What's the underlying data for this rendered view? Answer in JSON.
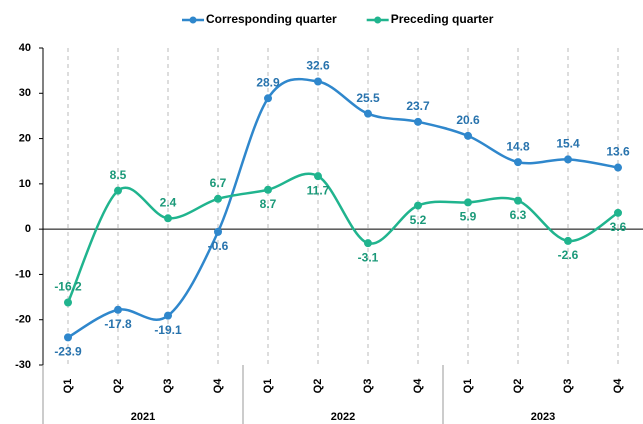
{
  "chart_data": {
    "type": "line",
    "categories": [
      "Q1",
      "Q2",
      "Q3",
      "Q4",
      "Q1",
      "Q2",
      "Q3",
      "Q4",
      "Q1",
      "Q2",
      "Q3",
      "Q4"
    ],
    "groups": [
      "2021",
      "2022",
      "2023"
    ],
    "series": [
      {
        "name": "Corresponding quarter",
        "color": "#2f87cc",
        "values": [
          -23.9,
          -17.8,
          -19.1,
          -0.6,
          28.9,
          32.6,
          25.5,
          23.7,
          20.6,
          14.8,
          15.4,
          13.6
        ]
      },
      {
        "name": "Preceding quarter",
        "color": "#20b48e",
        "values": [
          -16.2,
          8.5,
          2.4,
          6.7,
          8.7,
          11.7,
          -3.1,
          5.2,
          5.9,
          6.3,
          -2.6,
          3.6
        ]
      }
    ],
    "ylim": [
      -30,
      40
    ],
    "yticks": [
      -30,
      -20,
      -10,
      0,
      10,
      20,
      30,
      40
    ],
    "grid": true,
    "legend": "top"
  }
}
